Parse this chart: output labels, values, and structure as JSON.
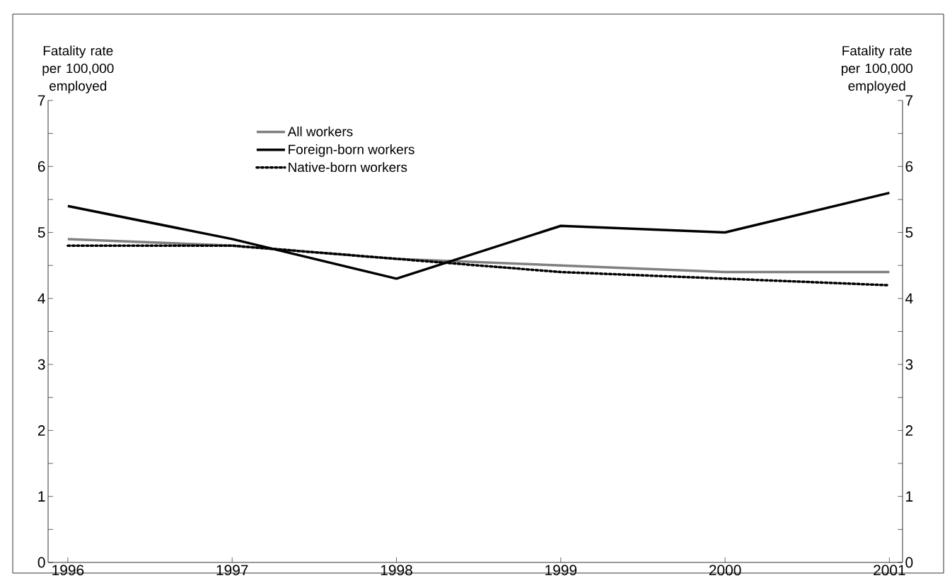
{
  "chart_data": {
    "type": "line",
    "ylabel": "Fatality rate per 100,000 employed",
    "y2label": "Fatality rate per 100,000 employed",
    "x": [
      1996,
      1997,
      1998,
      1999,
      2000,
      2001
    ],
    "series": [
      {
        "name": "All workers",
        "color": "#808080",
        "line_style": "solid",
        "values": [
          4.9,
          4.8,
          4.6,
          4.5,
          4.4,
          4.4
        ]
      },
      {
        "name": "Foreign-born workers",
        "color": "#000000",
        "line_style": "solid",
        "values": [
          5.4,
          4.9,
          4.3,
          5.1,
          5.0,
          5.6
        ]
      },
      {
        "name": "Native-born workers",
        "color": "#000000",
        "line_style": "dotted",
        "values": [
          4.8,
          4.8,
          4.6,
          4.4,
          4.3,
          4.2
        ]
      }
    ],
    "xlim": [
      1995.88,
      2001.08
    ],
    "xticks": [
      1996,
      1997,
      1998,
      1999,
      2000,
      2001
    ],
    "ylim": [
      0,
      7
    ],
    "yticks": [
      0,
      {
        "value": 0.5,
        "label": null
      },
      1,
      {
        "value": 1.5,
        "label": null
      },
      2,
      {
        "value": 2.5,
        "label": null
      },
      3,
      {
        "value": 3.5,
        "label": null
      },
      4,
      {
        "value": 4.5,
        "label": null
      },
      5,
      {
        "value": 5.5,
        "label": null
      },
      6,
      {
        "value": 6.5,
        "label": null
      },
      7
    ],
    "y2lim": [
      0,
      7
    ],
    "y2ticks": [
      0,
      {
        "value": 0.5,
        "label": null
      },
      1,
      {
        "value": 1.5,
        "label": null
      },
      2,
      {
        "value": 2.5,
        "label": null
      },
      3,
      {
        "value": 3.5,
        "label": null
      },
      4,
      {
        "value": 4.5,
        "label": null
      },
      5,
      {
        "value": 5.5,
        "label": null
      },
      6,
      {
        "value": 6.5,
        "label": null
      },
      7
    ],
    "grid": false,
    "legend": "top",
    "marker": "none"
  }
}
